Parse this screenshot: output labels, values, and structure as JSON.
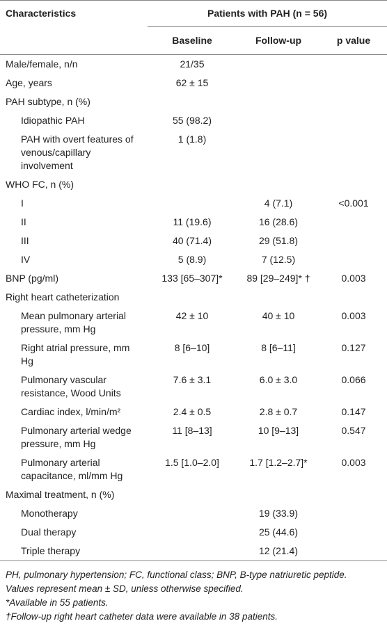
{
  "header": {
    "characteristics": "Characteristics",
    "group": "Patients with PAH (n = 56)",
    "columns": [
      "Baseline",
      "Follow-up",
      "p value"
    ]
  },
  "body": [
    [
      "Male/female, n/n",
      "21/35",
      null,
      null
    ],
    [
      "Age, years",
      "62 ± 15",
      null,
      null
    ],
    {
      "label": "PAH subtype, n (%)",
      "rows": [
        [
          "Idiopathic PAH",
          "55 (98.2)",
          null,
          null
        ],
        [
          "PAH with overt features of venous/capillary involvement",
          "1 (1.8)",
          null,
          null
        ]
      ]
    },
    {
      "label": "WHO FC, n (%)",
      "rows": [
        [
          "I",
          null,
          "4 (7.1)",
          "<0.001"
        ],
        [
          "II",
          "11 (19.6)",
          "16 (28.6)",
          null
        ],
        [
          "III",
          "40 (71.4)",
          "29 (51.8)",
          null
        ],
        [
          "IV",
          "5 (8.9)",
          "7 (12.5)",
          null
        ]
      ]
    },
    [
      "BNP (pg/ml)",
      "133 [65–307]*",
      "89 [29–249]* †",
      "0.003"
    ],
    {
      "label": "Right heart catheterization",
      "rows": [
        [
          "Mean pulmonary arterial pressure, mm Hg",
          "42 ± 10",
          "40 ± 10",
          "0.003"
        ],
        [
          "Right atrial pressure, mm Hg",
          "8 [6–10]",
          "8 [6–11]",
          "0.127"
        ],
        [
          "Pulmonary vascular resistance, Wood Units",
          "7.6 ± 3.1",
          "6.0 ± 3.0",
          "0.066"
        ],
        [
          "Cardiac index, l/min/m²",
          "2.4 ± 0.5",
          "2.8 ± 0.7",
          "0.147"
        ],
        [
          "Pulmonary arterial wedge pressure, mm Hg",
          "11 [8–13]",
          "10 [9–13]",
          "0.547"
        ],
        [
          "Pulmonary arterial capacitance, ml/mm Hg",
          "1.5 [1.0–2.0]",
          "1.7 [1.2–2.7]*",
          "0.003"
        ]
      ]
    },
    {
      "label": "Maximal treatment, n (%)",
      "rows": [
        [
          "Monotherapy",
          null,
          "19 (33.9)",
          null
        ],
        [
          "Dual therapy",
          null,
          "25 (44.6)",
          null
        ],
        [
          "Triple therapy",
          null,
          "12 (21.4)",
          null
        ]
      ]
    }
  ],
  "footnotes": [
    "PH, pulmonary hypertension; FC, functional class; BNP, B-type natriuretic peptide.",
    "Values represent mean ± SD, unless otherwise specified.",
    "*Available in 55 patients.",
    "†Follow-up right heart catheter data were available in 38 patients."
  ]
}
